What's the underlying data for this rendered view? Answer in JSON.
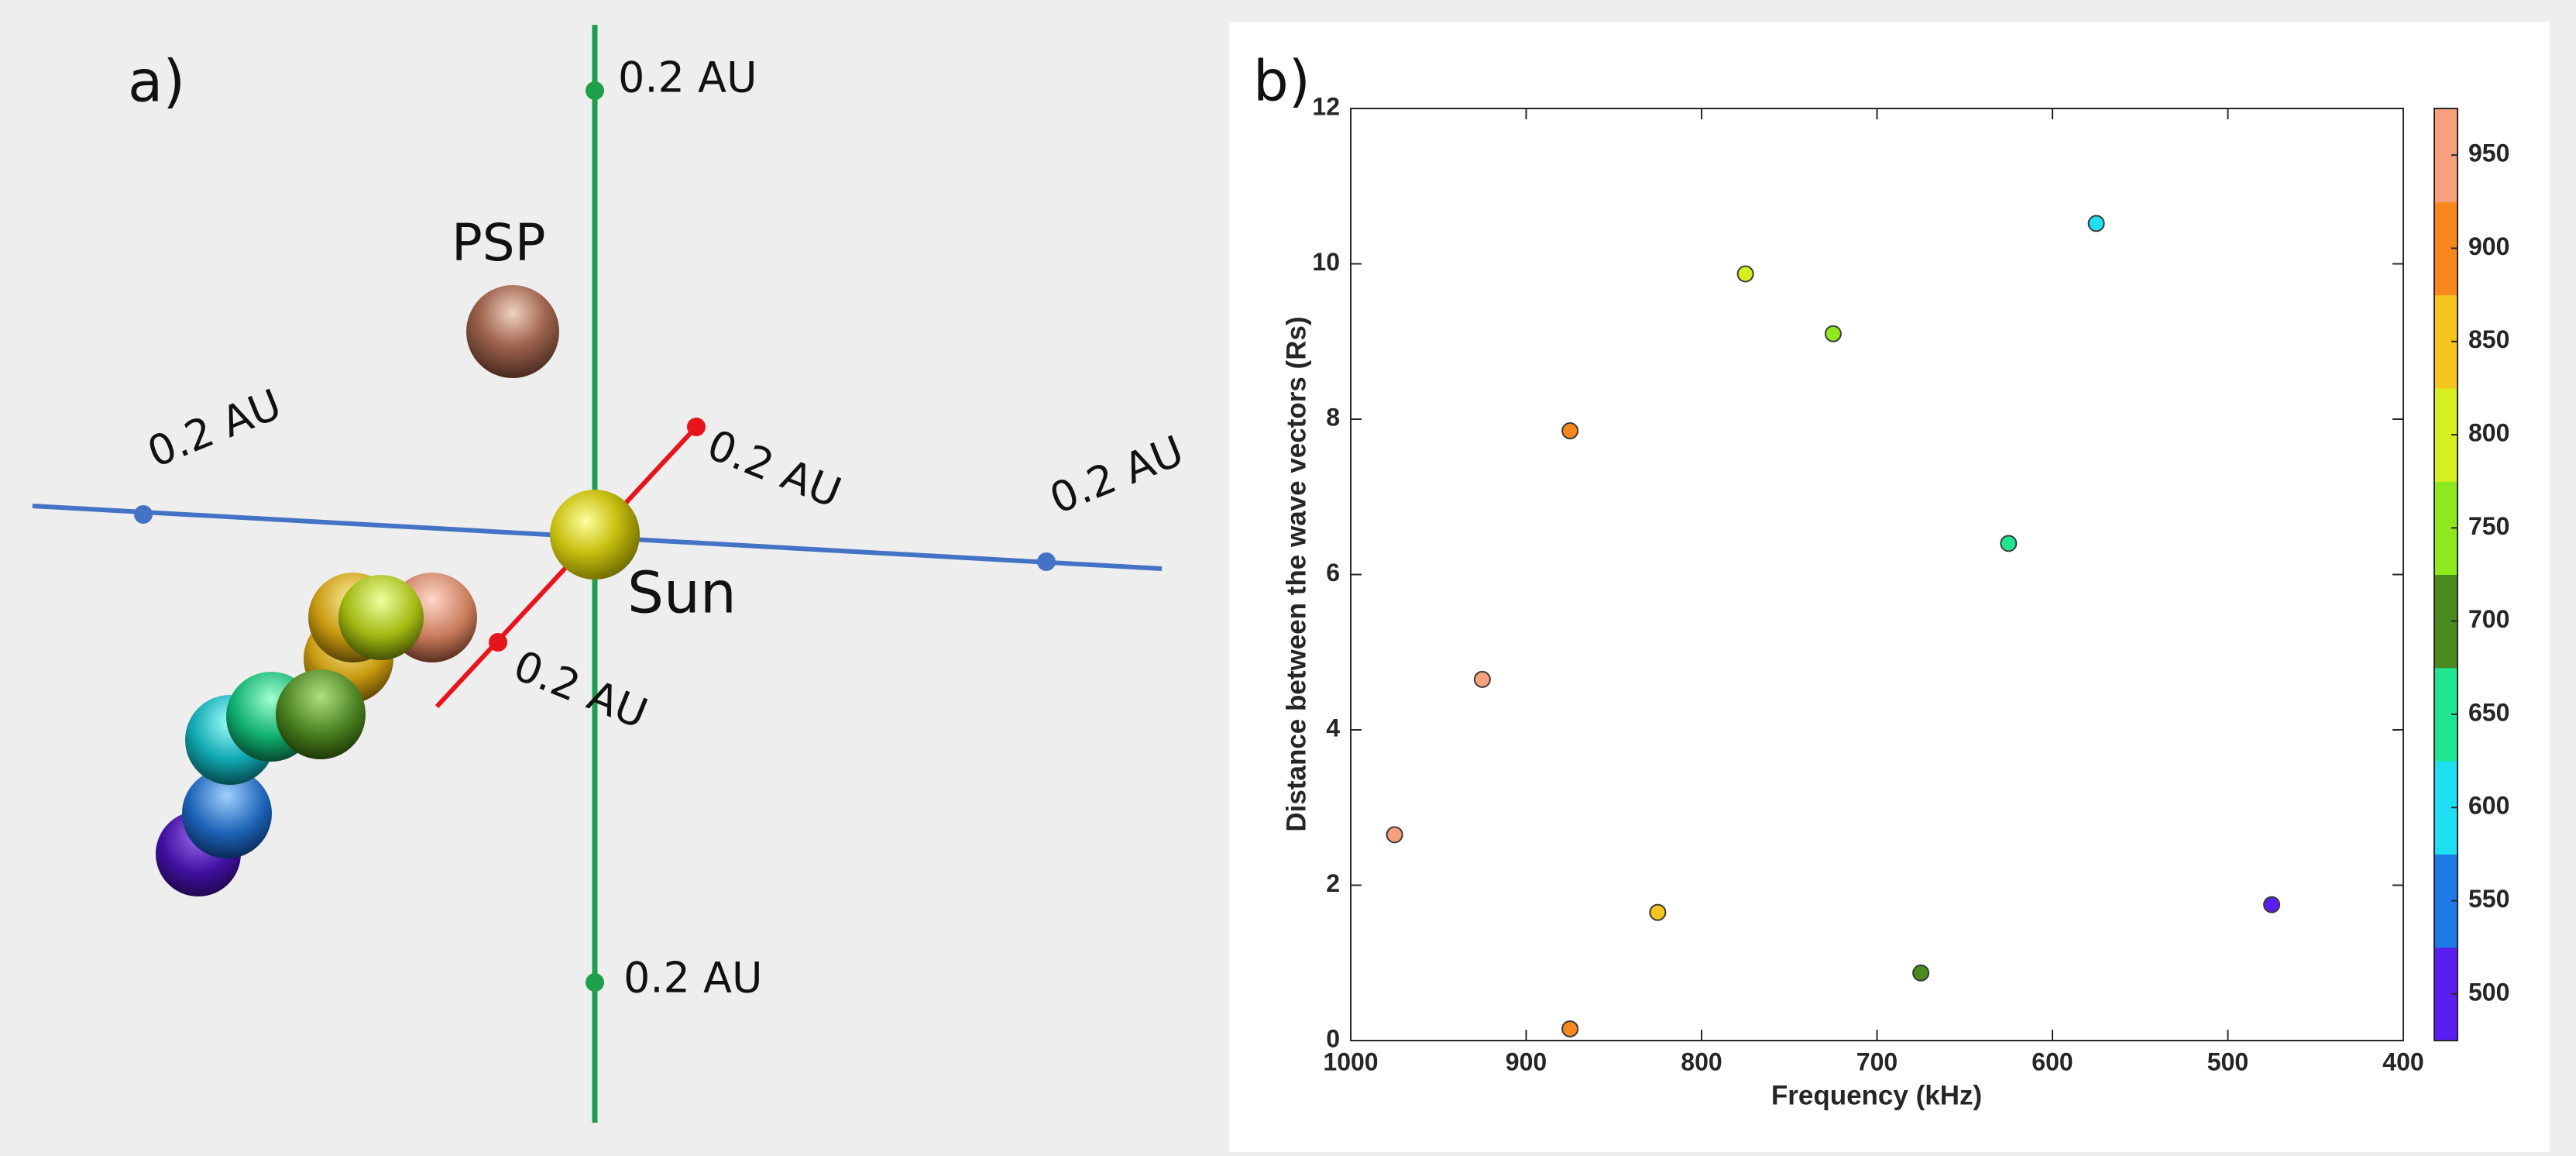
{
  "diagram": {
    "panel_label": "a)",
    "psp_label": "PSP",
    "sun_label": "Sun",
    "scale_labels": [
      "0.2 AU",
      "0.2 AU",
      "0.2 AU",
      "0.2 AU",
      "0.2 AU",
      "0.2 AU"
    ]
  },
  "chart_data": {
    "type": "scatter",
    "panel_label": "b)",
    "x_label": "Frequency (kHz)",
    "y_label": "Distance between the wave vectors (Rs)",
    "x": [
      975,
      925,
      875,
      875,
      825,
      775,
      725,
      675,
      625,
      575,
      475
    ],
    "y": [
      2.65,
      4.65,
      7.85,
      0.15,
      1.65,
      9.87,
      9.1,
      0.87,
      6.4,
      10.52,
      1.75
    ],
    "xlim": [
      1000,
      400
    ],
    "ylim": [
      0,
      12
    ],
    "xticks": [
      1000,
      900,
      800,
      700,
      600,
      500,
      400
    ],
    "yticks": [
      0,
      2,
      4,
      6,
      8,
      10,
      12
    ],
    "colorbar": {
      "lim": [
        475,
        975
      ],
      "ticks": [
        500,
        550,
        600,
        650,
        700,
        750,
        800,
        850,
        900,
        950
      ],
      "colors": [
        "#5a1ef2",
        "#1f7ae8",
        "#1fe0f2",
        "#1fe592",
        "#4a8a1e",
        "#8ee81e",
        "#d6f01e",
        "#f8c41e",
        "#f8881e",
        "#f8a07e"
      ]
    }
  }
}
